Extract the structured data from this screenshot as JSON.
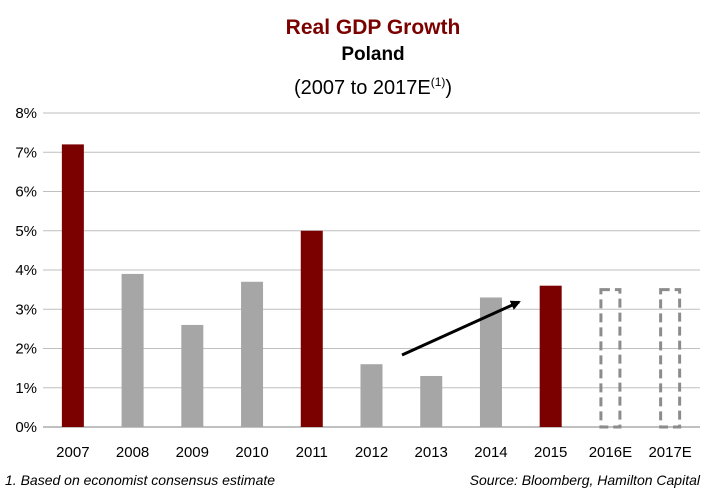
{
  "title": "Real GDP Growth",
  "subtitle": "Poland",
  "range_label": "(2007 to 2017E",
  "range_sup": "(1)",
  "range_close": ")",
  "footnote": "1. Based on economist consensus estimate",
  "source": "Source: Bloomberg, Hamilton Capital",
  "colors": {
    "highlight": "#7b0000",
    "regular": "#a6a6a6",
    "estimate_outline": "#8c8c8c",
    "grid": "#bfbfbf",
    "title": "#7b0000"
  },
  "chart_data": {
    "type": "bar",
    "categories": [
      "2007",
      "2008",
      "2009",
      "2010",
      "2011",
      "2012",
      "2013",
      "2014",
      "2015",
      "2016E",
      "2017E"
    ],
    "values": [
      7.2,
      3.9,
      2.6,
      3.7,
      5.0,
      1.6,
      1.3,
      3.3,
      3.6,
      3.5,
      3.5
    ],
    "bar_styles": [
      "highlight",
      "regular",
      "regular",
      "regular",
      "highlight",
      "regular",
      "regular",
      "regular",
      "highlight",
      "estimate",
      "estimate"
    ],
    "ylim": [
      0,
      8
    ],
    "yticks": [
      "0%",
      "1%",
      "2%",
      "3%",
      "4%",
      "5%",
      "6%",
      "7%",
      "8%"
    ],
    "grid": true,
    "annotation": "upward trend arrow from 2012 to 2015"
  }
}
